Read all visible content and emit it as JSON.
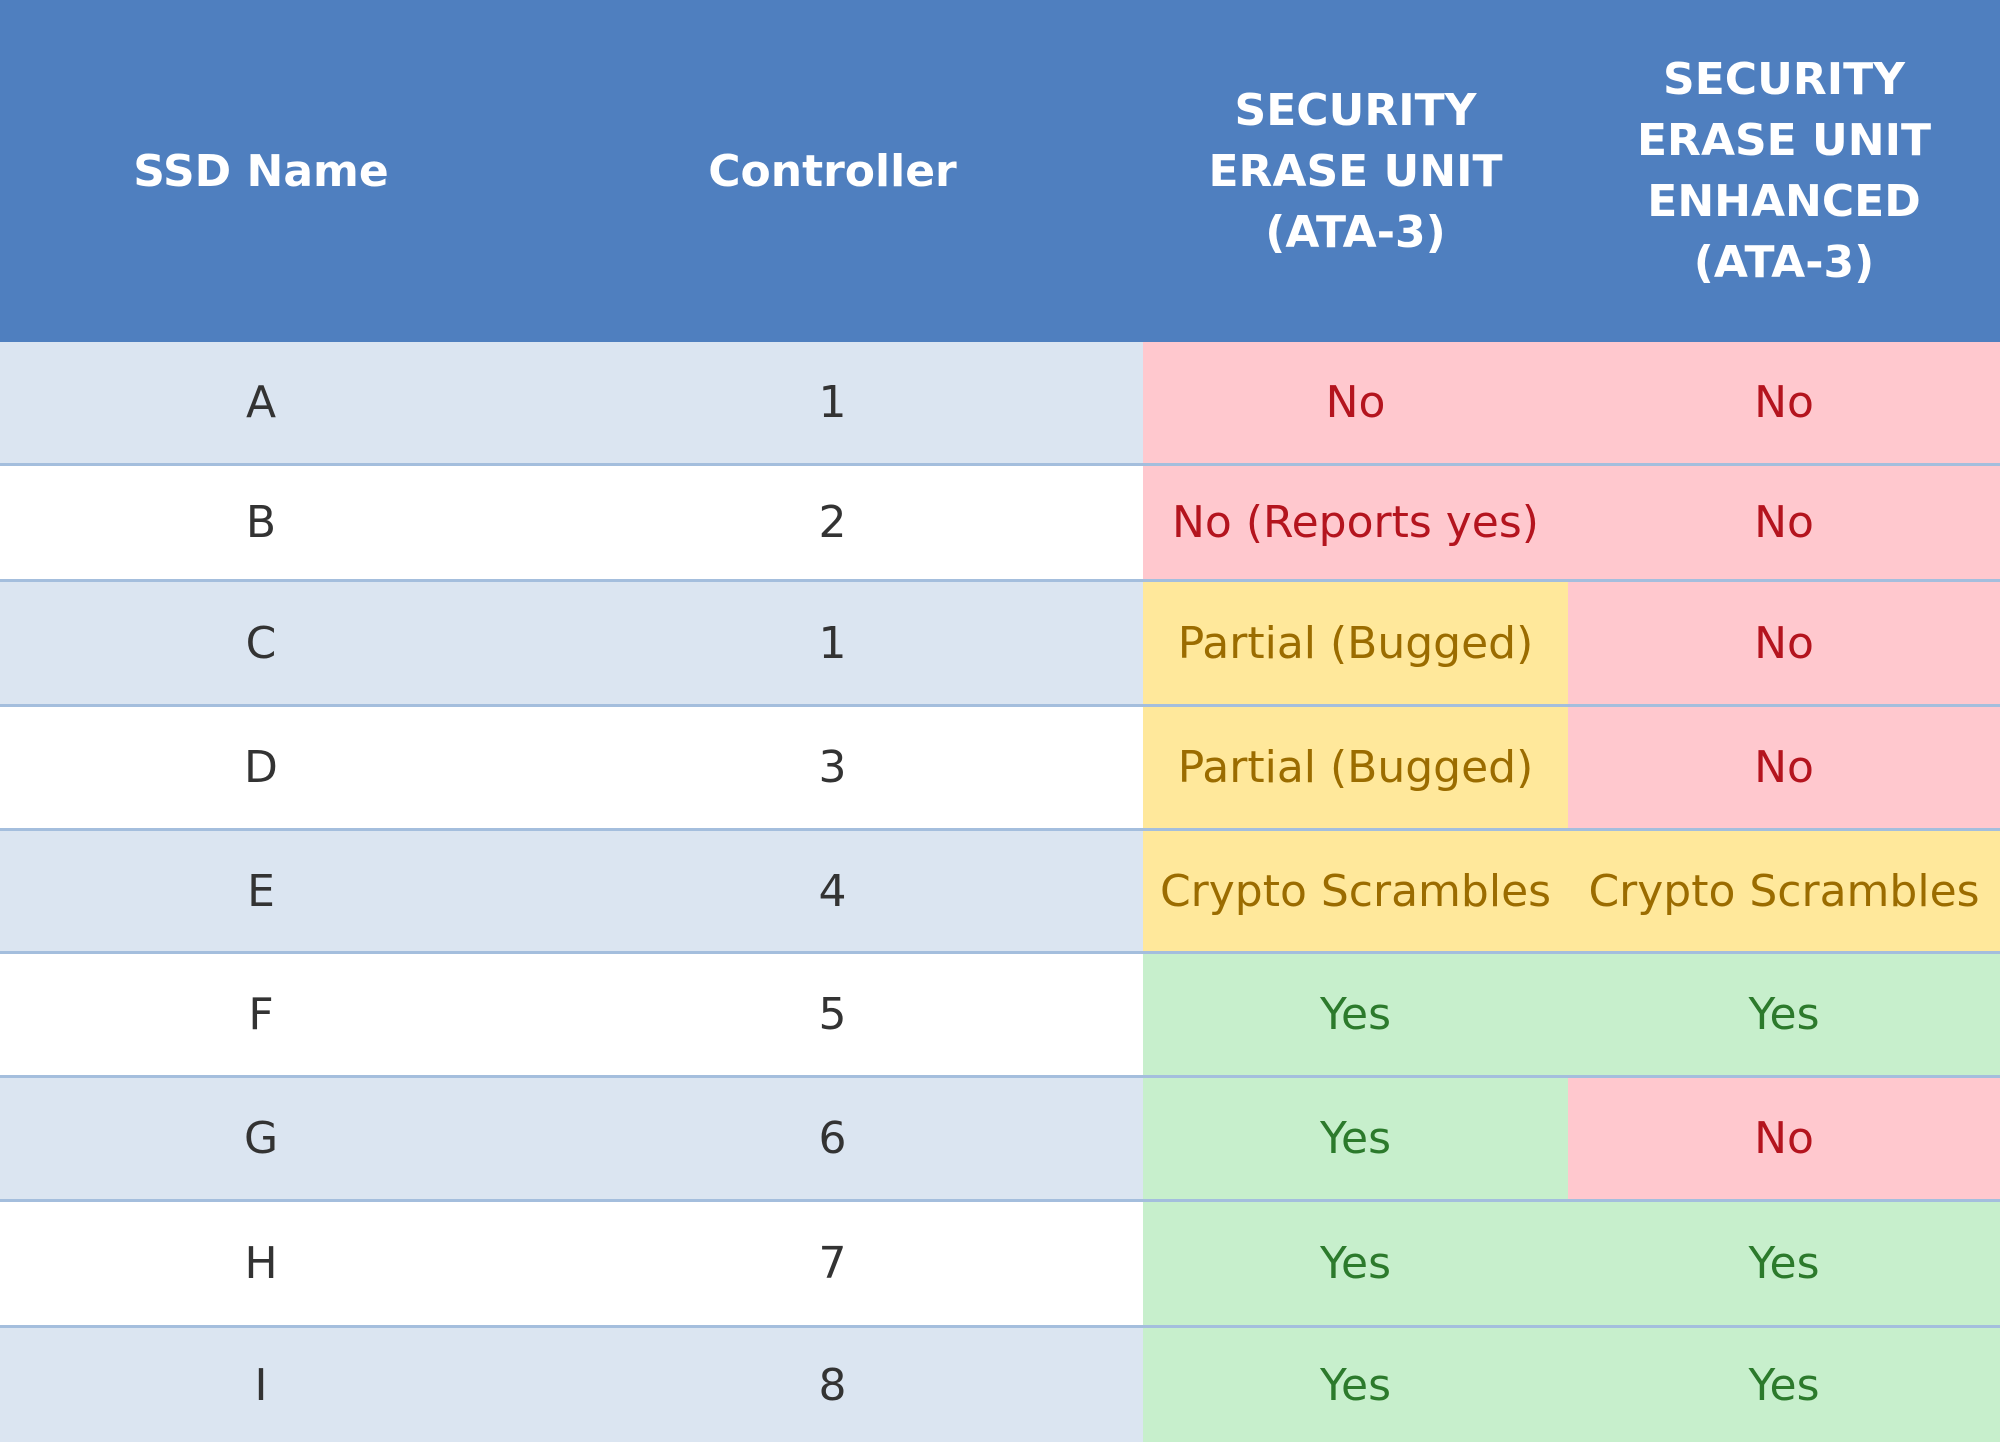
{
  "table": {
    "headers": [
      "SSD Name",
      "Controller",
      "SECURITY\nERASE UNIT\n(ATA-3)",
      "SECURITY\nERASE UNIT\nENHANCED\n(ATA-3)"
    ],
    "rows": [
      {
        "name": "A",
        "controller": "1",
        "seu": "No",
        "seu_status": "no",
        "seue": "No",
        "seue_status": "no"
      },
      {
        "name": "B",
        "controller": "2",
        "seu": "No (Reports yes)",
        "seu_status": "no",
        "seue": "No",
        "seue_status": "no"
      },
      {
        "name": "C",
        "controller": "1",
        "seu": "Partial (Bugged)",
        "seu_status": "partial",
        "seue": "No",
        "seue_status": "no"
      },
      {
        "name": "D",
        "controller": "3",
        "seu": "Partial (Bugged)",
        "seu_status": "partial",
        "seue": "No",
        "seue_status": "no"
      },
      {
        "name": "E",
        "controller": "4",
        "seu": "Crypto Scrambles",
        "seu_status": "partial",
        "seue": "Crypto Scrambles",
        "seue_status": "partial"
      },
      {
        "name": "F",
        "controller": "5",
        "seu": "Yes",
        "seu_status": "yes",
        "seue": "Yes",
        "seue_status": "yes"
      },
      {
        "name": "G",
        "controller": "6",
        "seu": "Yes",
        "seu_status": "yes",
        "seue": "No",
        "seue_status": "no"
      },
      {
        "name": "H",
        "controller": "7",
        "seu": "Yes",
        "seu_status": "yes",
        "seue": "Yes",
        "seue_status": "yes"
      },
      {
        "name": "I",
        "controller": "8",
        "seu": "Yes",
        "seu_status": "yes",
        "seue": "Yes",
        "seue_status": "yes"
      }
    ]
  },
  "colors": {
    "header": "#4f7fbf",
    "row_shade": "#dbe5f1",
    "no_bg": "#ffc8ce",
    "no_text": "#b4141e",
    "partial_bg": "#ffe89b",
    "partial_text": "#9b6c00",
    "yes_bg": "#c7efcc",
    "yes_text": "#2c7a2c"
  }
}
